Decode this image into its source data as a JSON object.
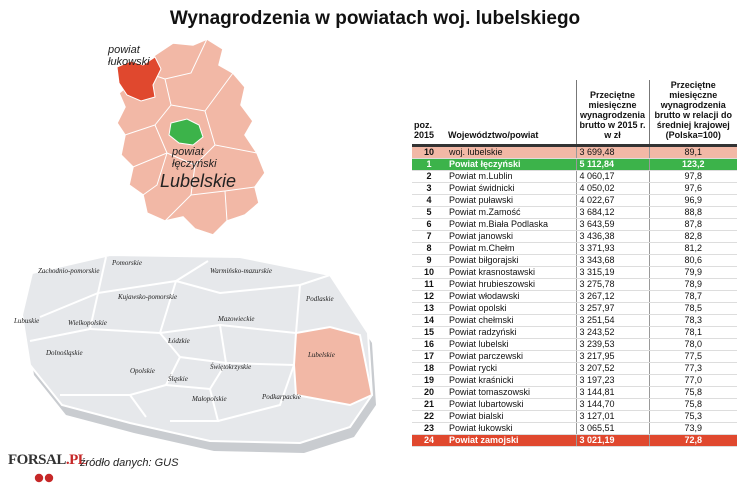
{
  "title": "Wynagrodzenia w powiatach woj. lubelskiego",
  "map": {
    "callout_lukowski": [
      "powiat",
      "łukowski"
    ],
    "callout_leczynski": [
      "powiat",
      "łęczyński"
    ],
    "region_label": "Lubelskie"
  },
  "poland_map": {
    "regions": [
      "Zachodnio-pomorskie",
      "Pomorskie",
      "Warmińsko-mazurskie",
      "Podlaskie",
      "Kujawsko-pomorskie",
      "Lubuskie",
      "Wielkopolskie",
      "Mazowieckie",
      "Łódzkie",
      "Lubelskie",
      "Dolnośląskie",
      "Opolskie",
      "Śląskie",
      "Świętokrzyskie",
      "Małopolskie",
      "Podkarpackie"
    ]
  },
  "table": {
    "headers": {
      "rank": "poz. 2015",
      "name": "Województwo/powiat",
      "value": "Przeciętne miesięczne wynagrodzenia brutto w 2015 r. w zł",
      "relative": "Przeciętne miesięczne wynagrodzenia brutto w relacji do średniej krajowej (Polska=100)"
    }
  },
  "chart_data": {
    "type": "table",
    "title": "Wynagrodzenia w powiatach woj. lubelskiego",
    "columns": [
      "poz. 2015",
      "Województwo/powiat",
      "Przeciętne miesięczne wynagrodzenia brutto w 2015 r. w zł",
      "Przeciętne miesięczne wynagrodzenia brutto w relacji do średniej krajowej (Polska=100)"
    ],
    "rows": [
      {
        "rank": "10",
        "name": "woj. lubelskie",
        "value": "3 699,48",
        "relative": "89,1",
        "highlight": "pink"
      },
      {
        "rank": "1",
        "name": "Powiat łęczyński",
        "value": "5 112,84",
        "relative": "123,2",
        "highlight": "green"
      },
      {
        "rank": "2",
        "name": "Powiat m.Lublin",
        "value": "4 060,17",
        "relative": "97,8"
      },
      {
        "rank": "3",
        "name": "Powiat świdnicki",
        "value": "4 050,02",
        "relative": "97,6"
      },
      {
        "rank": "4",
        "name": "Powiat puławski",
        "value": "4 022,67",
        "relative": "96,9"
      },
      {
        "rank": "5",
        "name": "Powiat m.Zamość",
        "value": "3 684,12",
        "relative": "88,8"
      },
      {
        "rank": "6",
        "name": "Powiat m.Biała Podlaska",
        "value": "3 643,59",
        "relative": "87,8"
      },
      {
        "rank": "7",
        "name": "Powiat janowski",
        "value": "3 436,38",
        "relative": "82,8"
      },
      {
        "rank": "8",
        "name": "Powiat m.Chełm",
        "value": "3 371,93",
        "relative": "81,2"
      },
      {
        "rank": "9",
        "name": "Powiat biłgorajski",
        "value": "3 343,68",
        "relative": "80,6"
      },
      {
        "rank": "10",
        "name": "Powiat krasnostawski",
        "value": "3 315,19",
        "relative": "79,9"
      },
      {
        "rank": "11",
        "name": "Powiat hrubieszowski",
        "value": "3 275,78",
        "relative": "78,9"
      },
      {
        "rank": "12",
        "name": "Powiat włodawski",
        "value": "3 267,12",
        "relative": "78,7"
      },
      {
        "rank": "13",
        "name": "Powiat opolski",
        "value": "3 257,97",
        "relative": "78,5"
      },
      {
        "rank": "14",
        "name": "Powiat chełmski",
        "value": "3 251,54",
        "relative": "78,3"
      },
      {
        "rank": "15",
        "name": "Powiat radzyński",
        "value": "3 243,52",
        "relative": "78,1"
      },
      {
        "rank": "16",
        "name": "Powiat lubelski",
        "value": "3 239,53",
        "relative": "78,0"
      },
      {
        "rank": "17",
        "name": "Powiat parczewski",
        "value": "3 217,95",
        "relative": "77,5"
      },
      {
        "rank": "18",
        "name": "Powiat rycki",
        "value": "3 207,52",
        "relative": "77,3"
      },
      {
        "rank": "19",
        "name": "Powiat kraśnicki",
        "value": "3 197,23",
        "relative": "77,0"
      },
      {
        "rank": "20",
        "name": "Powiat tomaszowski",
        "value": "3 144,81",
        "relative": "75,8"
      },
      {
        "rank": "21",
        "name": "Powiat lubartowski",
        "value": "3 144,70",
        "relative": "75,8"
      },
      {
        "rank": "22",
        "name": "Powiat bialski",
        "value": "3 127,01",
        "relative": "75,3"
      },
      {
        "rank": "23",
        "name": "Powiat łukowski",
        "value": "3 065,51",
        "relative": "73,9"
      },
      {
        "rank": "24",
        "name": "Powiat zamojski",
        "value": "3 021,19",
        "relative": "72,8",
        "highlight": "red"
      }
    ]
  },
  "colors": {
    "highlight_pink": "#f2b8a6",
    "highlight_green": "#3cb34a",
    "highlight_red": "#e0482e",
    "map_fill": "#f2b8a6"
  },
  "footer": {
    "logo_text": "FORSAL",
    "logo_dot": ".PL",
    "source": "źródło danych: GUS"
  }
}
